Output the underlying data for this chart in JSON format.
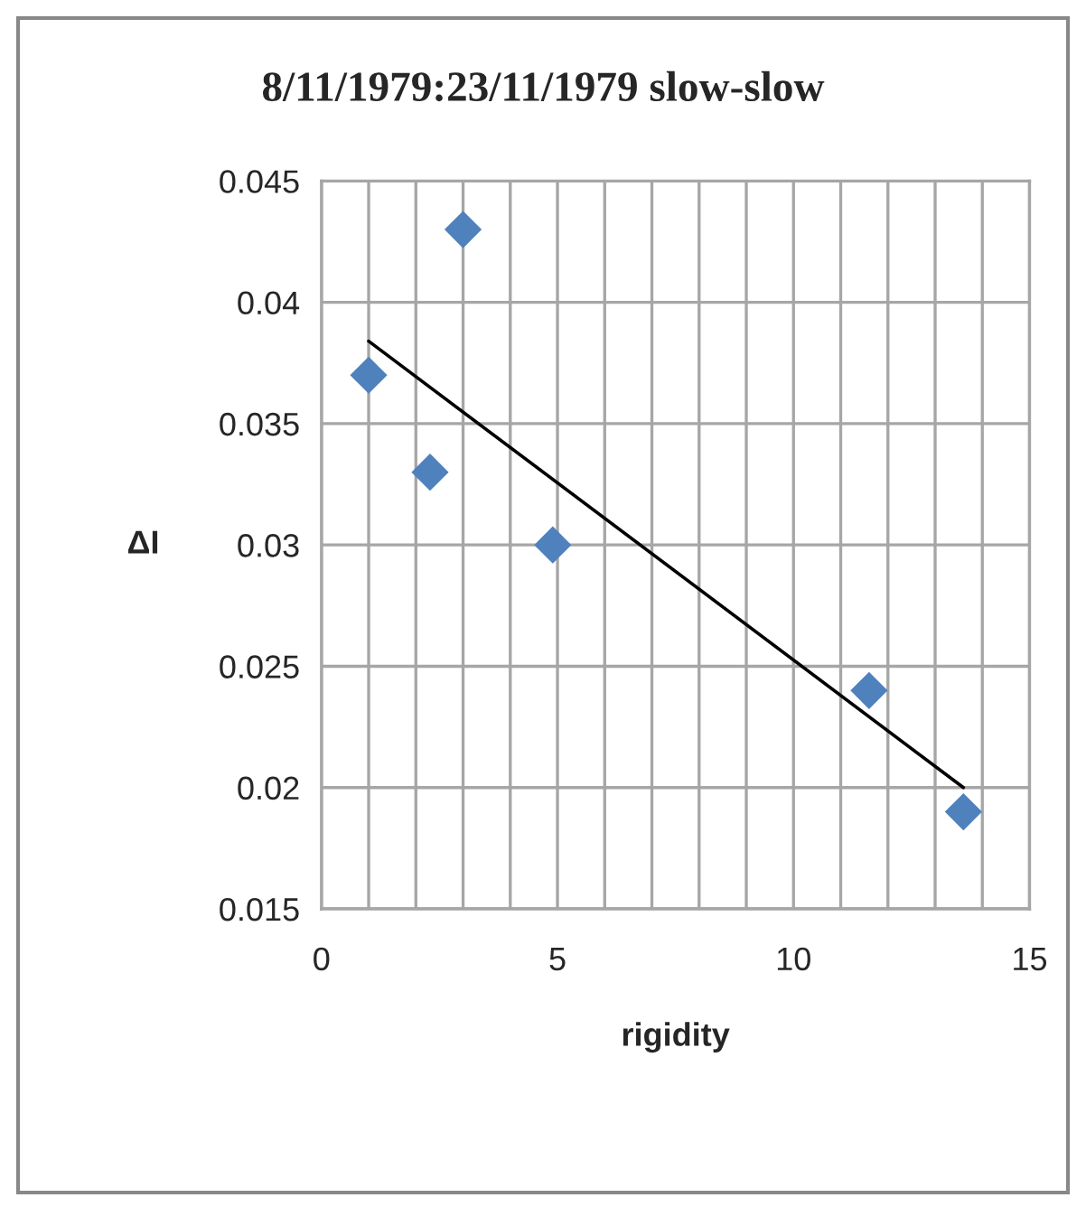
{
  "chart_data": {
    "type": "scatter",
    "title": "8/11/1979:23/11/1979 slow-slow",
    "xlabel": "rigidity",
    "ylabel": "ΔI",
    "x": [
      1.0,
      2.3,
      3.0,
      4.9,
      11.6,
      13.6
    ],
    "series": [
      {
        "color": "#4f81bd",
        "marker": "diamond",
        "values": [
          0.037,
          0.033,
          0.043,
          0.03,
          0.024,
          0.019
        ]
      },
      {
        "type": "line",
        "color": "#000000",
        "marker": "none",
        "line_style": "solid",
        "x": [
          1.0,
          13.6
        ],
        "values": [
          0.0384,
          0.02
        ]
      }
    ],
    "xlim": [
      0,
      15
    ],
    "xticks": [
      0,
      {
        "value": 1,
        "label": null
      },
      {
        "value": 2,
        "label": null
      },
      {
        "value": 3,
        "label": null
      },
      {
        "value": 4,
        "label": null
      },
      5,
      {
        "value": 6,
        "label": null
      },
      {
        "value": 7,
        "label": null
      },
      {
        "value": 8,
        "label": null
      },
      {
        "value": 9,
        "label": null
      },
      10,
      {
        "value": 11,
        "label": null
      },
      {
        "value": 12,
        "label": null
      },
      {
        "value": 13,
        "label": null
      },
      {
        "value": 14,
        "label": null
      },
      15
    ],
    "ylim": [
      0.015,
      0.045
    ],
    "yticks": [
      0.015,
      0.02,
      0.025,
      0.03,
      0.035,
      0.04,
      0.045
    ],
    "grid": true,
    "legend": false
  }
}
